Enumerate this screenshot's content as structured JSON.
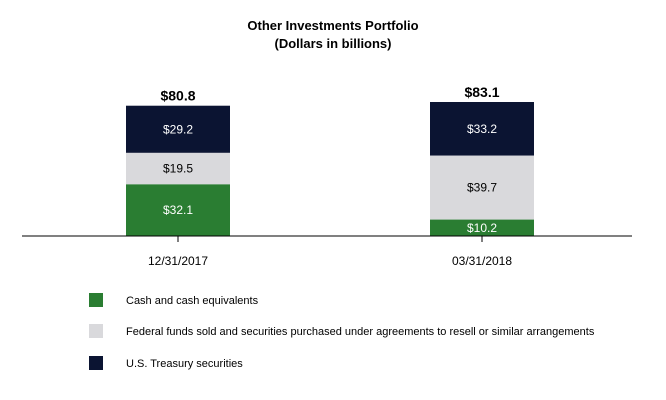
{
  "chart_data": {
    "type": "bar",
    "stacked": true,
    "title": "Other Investments Portfolio",
    "subtitle": "(Dollars in billions)",
    "categories": [
      "12/31/2017",
      "03/31/2018"
    ],
    "series": [
      {
        "name": "Cash and cash equivalents",
        "values": [
          32.1,
          10.2
        ],
        "labels": [
          "$32.1",
          "$10.2"
        ],
        "color": "#2a7d32",
        "label_color": "#ffffff"
      },
      {
        "name": "Federal funds sold and securities purchased under agreements to resell or similar arrangements",
        "values": [
          19.5,
          39.7
        ],
        "labels": [
          "$19.5",
          "$39.7"
        ],
        "color": "#d9d9dc",
        "label_color": "#000000"
      },
      {
        "name": "U.S. Treasury securities",
        "values": [
          29.2,
          33.2
        ],
        "labels": [
          "$29.2",
          "$33.2"
        ],
        "color": "#0b1432",
        "label_color": "#ffffff"
      }
    ],
    "totals": [
      80.8,
      83.1
    ],
    "total_labels": [
      "$80.8",
      "$83.1"
    ],
    "ylim": [
      0,
      83.1
    ],
    "grid": false,
    "legend_position": "bottom-left"
  }
}
